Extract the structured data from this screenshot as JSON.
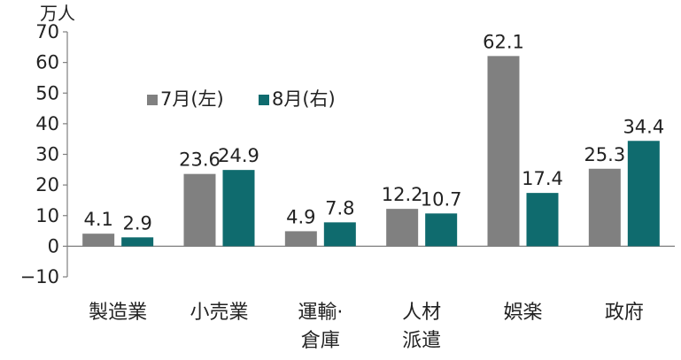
{
  "chart_data": {
    "type": "bar",
    "unit": "万人",
    "categories": [
      [
        "製造業"
      ],
      [
        "小売業"
      ],
      [
        "運輸·",
        "倉庫"
      ],
      [
        "人材",
        "派遣"
      ],
      [
        "娯楽"
      ],
      [
        "政府"
      ]
    ],
    "series": [
      {
        "name": "7月(左)",
        "color": "#808080",
        "values": [
          4.1,
          23.6,
          4.9,
          12.2,
          62.1,
          25.3
        ]
      },
      {
        "name": "8月(右)",
        "color": "#0f6b6e",
        "values": [
          2.9,
          24.9,
          7.8,
          10.7,
          17.4,
          34.4
        ]
      }
    ],
    "ylim": [
      -10,
      70
    ],
    "yticks": [
      -10,
      0,
      10,
      20,
      30,
      40,
      50,
      60,
      70
    ],
    "grid": false,
    "legend": "top-left"
  }
}
